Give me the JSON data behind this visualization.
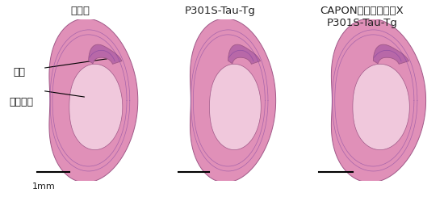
{
  "titles": [
    "野生型",
    "P301S-Tau-Tg",
    "CAPONノックアウトX\nP301S-Tau-Tg"
  ],
  "label_hippocampus": "海馬",
  "label_cortex": "大脳皮質",
  "scale_label": "1mm",
  "brain_color_outer": "#e090b8",
  "brain_color_mid": "#d878a8",
  "brain_color_inner": "#f0c8dc",
  "hippocampus_color": "#b868a8",
  "edge_color": "#a05888",
  "line_color": "#7840a0",
  "title_fontsize": 9.5,
  "label_fontsize": 9,
  "scale_fontsize": 8
}
